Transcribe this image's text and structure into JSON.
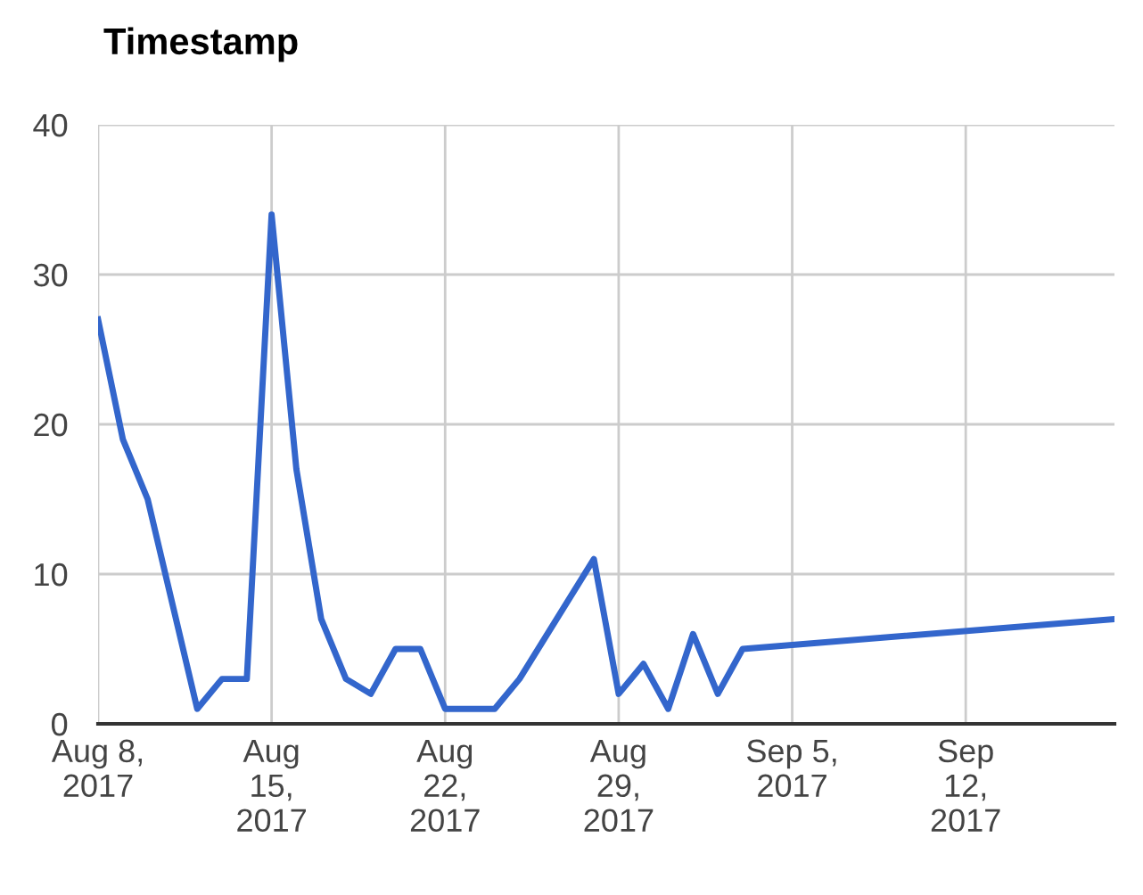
{
  "chart_data": {
    "type": "line",
    "title": "Timestamp",
    "x": [
      "2017-08-08",
      "2017-08-09",
      "2017-08-10",
      "2017-08-12",
      "2017-08-13",
      "2017-08-14",
      "2017-08-15",
      "2017-08-16",
      "2017-08-17",
      "2017-08-18",
      "2017-08-19",
      "2017-08-20",
      "2017-08-21",
      "2017-08-22",
      "2017-08-24",
      "2017-08-25",
      "2017-08-28",
      "2017-08-29",
      "2017-08-30",
      "2017-08-31",
      "2017-09-01",
      "2017-09-02",
      "2017-09-03",
      "2017-09-18"
    ],
    "series": [
      {
        "color": "#3366cc",
        "values": [
          27,
          19,
          15,
          1,
          3,
          3,
          34,
          17,
          7,
          3,
          2,
          5,
          5,
          1,
          1,
          3,
          11,
          2,
          4,
          1,
          6,
          2,
          5,
          7
        ]
      }
    ],
    "xlim": [
      "2017-08-08",
      "2017-09-18"
    ],
    "xticks": [
      {
        "value": "2017-08-08",
        "label": "Aug 8,\n2017"
      },
      {
        "value": "2017-08-15",
        "label": "Aug\n15,\n2017"
      },
      {
        "value": "2017-08-22",
        "label": "Aug\n22,\n2017"
      },
      {
        "value": "2017-08-29",
        "label": "Aug\n29,\n2017"
      },
      {
        "value": "2017-09-05",
        "label": "Sep 5,\n2017"
      },
      {
        "value": "2017-09-12",
        "label": "Sep\n12,\n2017"
      }
    ],
    "ylim": [
      0,
      40
    ],
    "yticks": [
      0,
      10,
      20,
      30,
      40
    ],
    "grid": true,
    "legend": false,
    "marker": "none",
    "line_style": "solid"
  }
}
